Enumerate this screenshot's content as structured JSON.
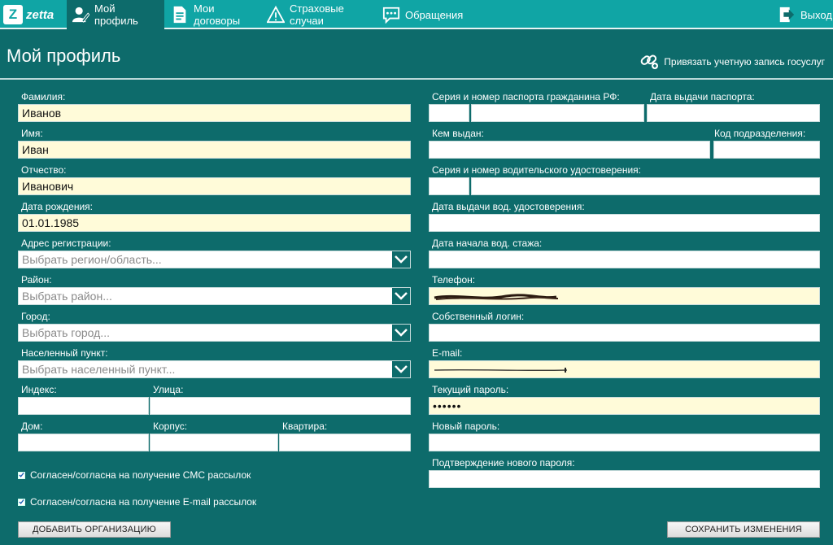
{
  "nav": {
    "logo": "zetta",
    "items": [
      {
        "label": "Мой профиль",
        "icon": "user-edit-icon"
      },
      {
        "label": "Мои договоры",
        "icon": "document-icon"
      },
      {
        "label": "Страховые случаи",
        "icon": "warning-icon"
      },
      {
        "label": "Обращения",
        "icon": "chat-icon"
      }
    ],
    "logout": "Выход"
  },
  "page": {
    "title": "Мой профиль",
    "gosuslugi_link": "Привязать учетную запись госуслуг"
  },
  "left": {
    "lastname": {
      "label": "Фамилия:",
      "value": "Иванов"
    },
    "firstname": {
      "label": "Имя:",
      "value": "Иван"
    },
    "patronymic": {
      "label": "Отчество:",
      "value": "Иванович"
    },
    "birthdate": {
      "label": "Дата рождения:",
      "value": "01.01.1985"
    },
    "region": {
      "label": "Адрес регистрации:",
      "placeholder": "Выбрать регион/область..."
    },
    "district": {
      "label": "Район:",
      "placeholder": "Выбрать район..."
    },
    "city": {
      "label": "Город:",
      "placeholder": "Выбрать город..."
    },
    "settlement": {
      "label": "Населенный пункт:",
      "placeholder": "Выбрать населенный пункт..."
    },
    "index": {
      "label": "Индекс:",
      "value": ""
    },
    "street": {
      "label": "Улица:",
      "value": ""
    },
    "house": {
      "label": "Дом:",
      "value": ""
    },
    "building": {
      "label": "Корпус:",
      "value": ""
    },
    "apartment": {
      "label": "Квартира:",
      "value": ""
    },
    "sms_consent": "Согласен/согласна на получение СМС рассылок",
    "email_consent": "Согласен/согласна на получение E-mail рассылок",
    "add_org_button": "ДОБАВИТЬ ОРГАНИЗАЦИЮ"
  },
  "right": {
    "passport": {
      "label": "Серия и  номер паспорта гражданина РФ:",
      "series": "",
      "number": ""
    },
    "passport_date": {
      "label": "Дата выдачи паспорта:",
      "value": ""
    },
    "issued_by": {
      "label": "Кем выдан:",
      "value": ""
    },
    "division_code": {
      "label": "Код подразделения:",
      "value": ""
    },
    "license": {
      "label": "Серия и  номер водительского удостоверения:",
      "series": "",
      "number": ""
    },
    "license_date": {
      "label": "Дата выдачи вод. удостоверения:",
      "value": ""
    },
    "driving_start": {
      "label": "Дата начала вод. стажа:",
      "value": ""
    },
    "phone": {
      "label": "Телефон:",
      "value": ""
    },
    "login": {
      "label": "Собственный логин:",
      "value": ""
    },
    "email": {
      "label": "E-mail:",
      "value": ""
    },
    "current_password": {
      "label": "Текущий пароль:",
      "value": "••••••"
    },
    "new_password": {
      "label": "Новый пароль:",
      "value": ""
    },
    "confirm_password": {
      "label": "Подтверждение нового пароля:",
      "value": ""
    },
    "save_button": "СОХРАНИТЬ ИЗМЕНЕНИЯ"
  },
  "colors": {
    "nav": "#10a5a5",
    "background": "#0d6b6b",
    "filled_field": "#fffbd9"
  }
}
